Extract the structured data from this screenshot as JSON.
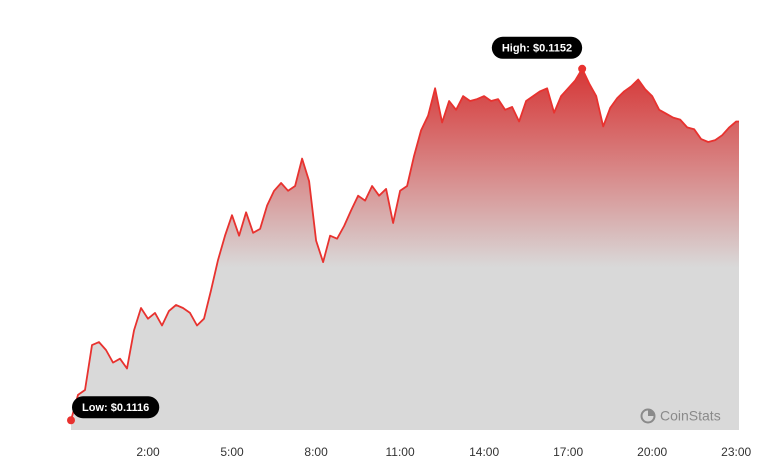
{
  "chart_data": {
    "type": "area",
    "x": [
      -0.75,
      -0.5,
      -0.25,
      0,
      0.25,
      0.5,
      0.75,
      1,
      1.25,
      1.5,
      1.75,
      2,
      2.25,
      2.5,
      2.75,
      3,
      3.25,
      3.5,
      3.75,
      4,
      4.25,
      4.5,
      4.75,
      5,
      5.25,
      5.5,
      5.75,
      6,
      6.25,
      6.5,
      6.75,
      7,
      7.25,
      7.5,
      7.75,
      8,
      8.25,
      8.5,
      8.75,
      9,
      9.25,
      9.5,
      9.75,
      10,
      10.25,
      10.5,
      10.75,
      11,
      11.25,
      11.5,
      11.75,
      12,
      12.25,
      12.5,
      12.75,
      13,
      13.25,
      13.5,
      13.75,
      14,
      14.25,
      14.5,
      14.75,
      15,
      15.25,
      15.5,
      15.75,
      16,
      16.25,
      16.5,
      16.75,
      17,
      17.25,
      17.5,
      17.75,
      18,
      18.25,
      18.5,
      18.75,
      19,
      19.25,
      19.5,
      19.75,
      20,
      20.25,
      20.5,
      20.75,
      21,
      21.25,
      21.5,
      21.75,
      22,
      22.25,
      22.5,
      22.75,
      23,
      23.1
    ],
    "values": [
      0.1116,
      0.11186,
      0.11191,
      0.11237,
      0.1124,
      0.11232,
      0.11219,
      0.11223,
      0.11213,
      0.11252,
      0.11275,
      0.11264,
      0.1127,
      0.11257,
      0.11272,
      0.11278,
      0.11275,
      0.1127,
      0.11257,
      0.11264,
      0.11293,
      0.11324,
      0.11349,
      0.1137,
      0.11349,
      0.11373,
      0.11352,
      0.11356,
      0.1138,
      0.11395,
      0.11403,
      0.11395,
      0.114,
      0.11428,
      0.11405,
      0.11344,
      0.11322,
      0.11349,
      0.11346,
      0.11359,
      0.11375,
      0.1139,
      0.11385,
      0.114,
      0.1139,
      0.11397,
      0.11362,
      0.11395,
      0.114,
      0.11431,
      0.11457,
      0.11472,
      0.115,
      0.11465,
      0.11487,
      0.11478,
      0.11492,
      0.11487,
      0.11489,
      0.11492,
      0.11487,
      0.11489,
      0.11478,
      0.11481,
      0.11466,
      0.11487,
      0.11492,
      0.11497,
      0.115,
      0.11475,
      0.11492,
      0.115,
      0.11508,
      0.1152,
      0.11505,
      0.11492,
      0.11461,
      0.1148,
      0.1149,
      0.11497,
      0.11502,
      0.11509,
      0.11499,
      0.11492,
      0.11478,
      0.11474,
      0.1147,
      0.11468,
      0.1146,
      0.11458,
      0.11448,
      0.11445,
      0.11447,
      0.11452,
      0.1146,
      0.11466,
      0.11466
    ],
    "color": "#e8322f",
    "xlim": [
      -0.75,
      23.1
    ],
    "ylim": [
      0.1115,
      0.1157
    ],
    "xticks": [
      {
        "value": 2,
        "label": "2:00"
      },
      {
        "value": 5,
        "label": "5:00"
      },
      {
        "value": 8,
        "label": "8:00"
      },
      {
        "value": 11,
        "label": "11:00"
      },
      {
        "value": 14,
        "label": "14:00"
      },
      {
        "value": 17,
        "label": "17:00"
      },
      {
        "value": 20,
        "label": "20:00"
      },
      {
        "value": 23,
        "label": "23:00"
      }
    ],
    "annotations": [
      {
        "text": "Low: $0.1116",
        "x": -0.75,
        "y": 0.1116
      },
      {
        "text": "High: $0.1152",
        "x": 17.5,
        "y": 0.1152
      }
    ],
    "watermark": "CoinStats"
  }
}
